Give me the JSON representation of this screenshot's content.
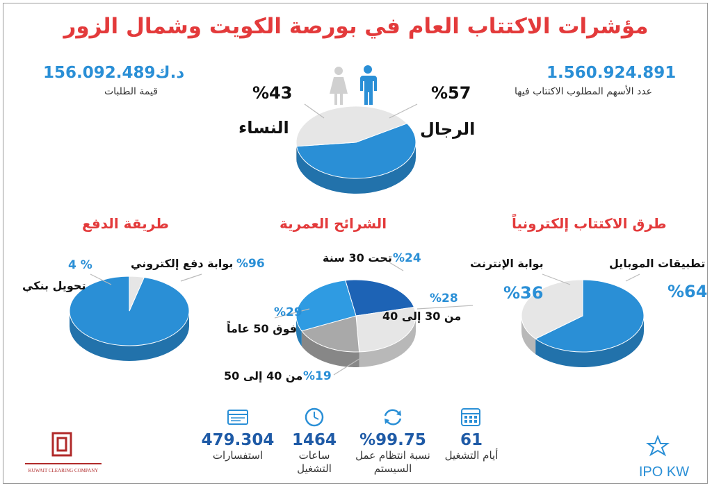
{
  "title": "مؤشرات الاكتتاب العام في بورصة الكويت وشمال الزور",
  "top_left": {
    "value": "156.092.489د.ك",
    "label": "قيمة الطلبات"
  },
  "top_right": {
    "value": "1.560.924.891",
    "label": "عدد الأسهم المطلوب الاكتتاب فيها"
  },
  "stats": [
    {
      "value": "61",
      "label": "أيام التشغيل",
      "icon": "calendar-icon"
    },
    {
      "value": "%99.75",
      "label": "نسبة انتظام عمل السيستم",
      "icon": "refresh-icon"
    },
    {
      "value": "1464",
      "label": "ساعات التشغيل",
      "icon": "clock-icon"
    },
    {
      "value": "479.304",
      "label": "استفسارات",
      "icon": "browser-icon"
    }
  ],
  "logos": {
    "left_caption": "KUWAIT CLEARING COMPANY",
    "right_text": "IPO KW"
  },
  "colors": {
    "accent_red": "#e33a3b",
    "blue": "#2a8fd6",
    "light_gray": "#e6e6e6",
    "dark_blue": "#1e5aa6"
  },
  "chart_data": [
    {
      "type": "pie",
      "title": "",
      "slices": [
        {
          "label": "الرجال",
          "value": 57,
          "pct_label": "%57"
        },
        {
          "label": "النساء",
          "value": 43,
          "pct_label": "%43"
        }
      ]
    },
    {
      "type": "pie",
      "title": "طرق الاكتتاب إلكترونياً",
      "slices": [
        {
          "label": "تطبيقات الموبايل",
          "value": 64,
          "pct_label": "%64"
        },
        {
          "label": "بوابة الإنترنت",
          "value": 36,
          "pct_label": "%36"
        }
      ]
    },
    {
      "type": "pie",
      "title": "الشرائح العمرية",
      "slices": [
        {
          "label": "تحت 30 سنة",
          "value": 24,
          "pct_label": "%24"
        },
        {
          "label": "من 30 إلى 40",
          "value": 28,
          "pct_label": "%28"
        },
        {
          "label": "من 40 إلى 50",
          "value": 19,
          "pct_label": "%19"
        },
        {
          "label": "فوق 50 عاماً",
          "value": 29,
          "pct_label": "%29"
        }
      ]
    },
    {
      "type": "pie",
      "title": "طريقة الدفع",
      "slices": [
        {
          "label": "بوابة دفع إلكتروني",
          "value": 96,
          "pct_label": "%96"
        },
        {
          "label": "تحويل بنكي",
          "value": 4,
          "pct_label": "% 4"
        }
      ]
    }
  ]
}
